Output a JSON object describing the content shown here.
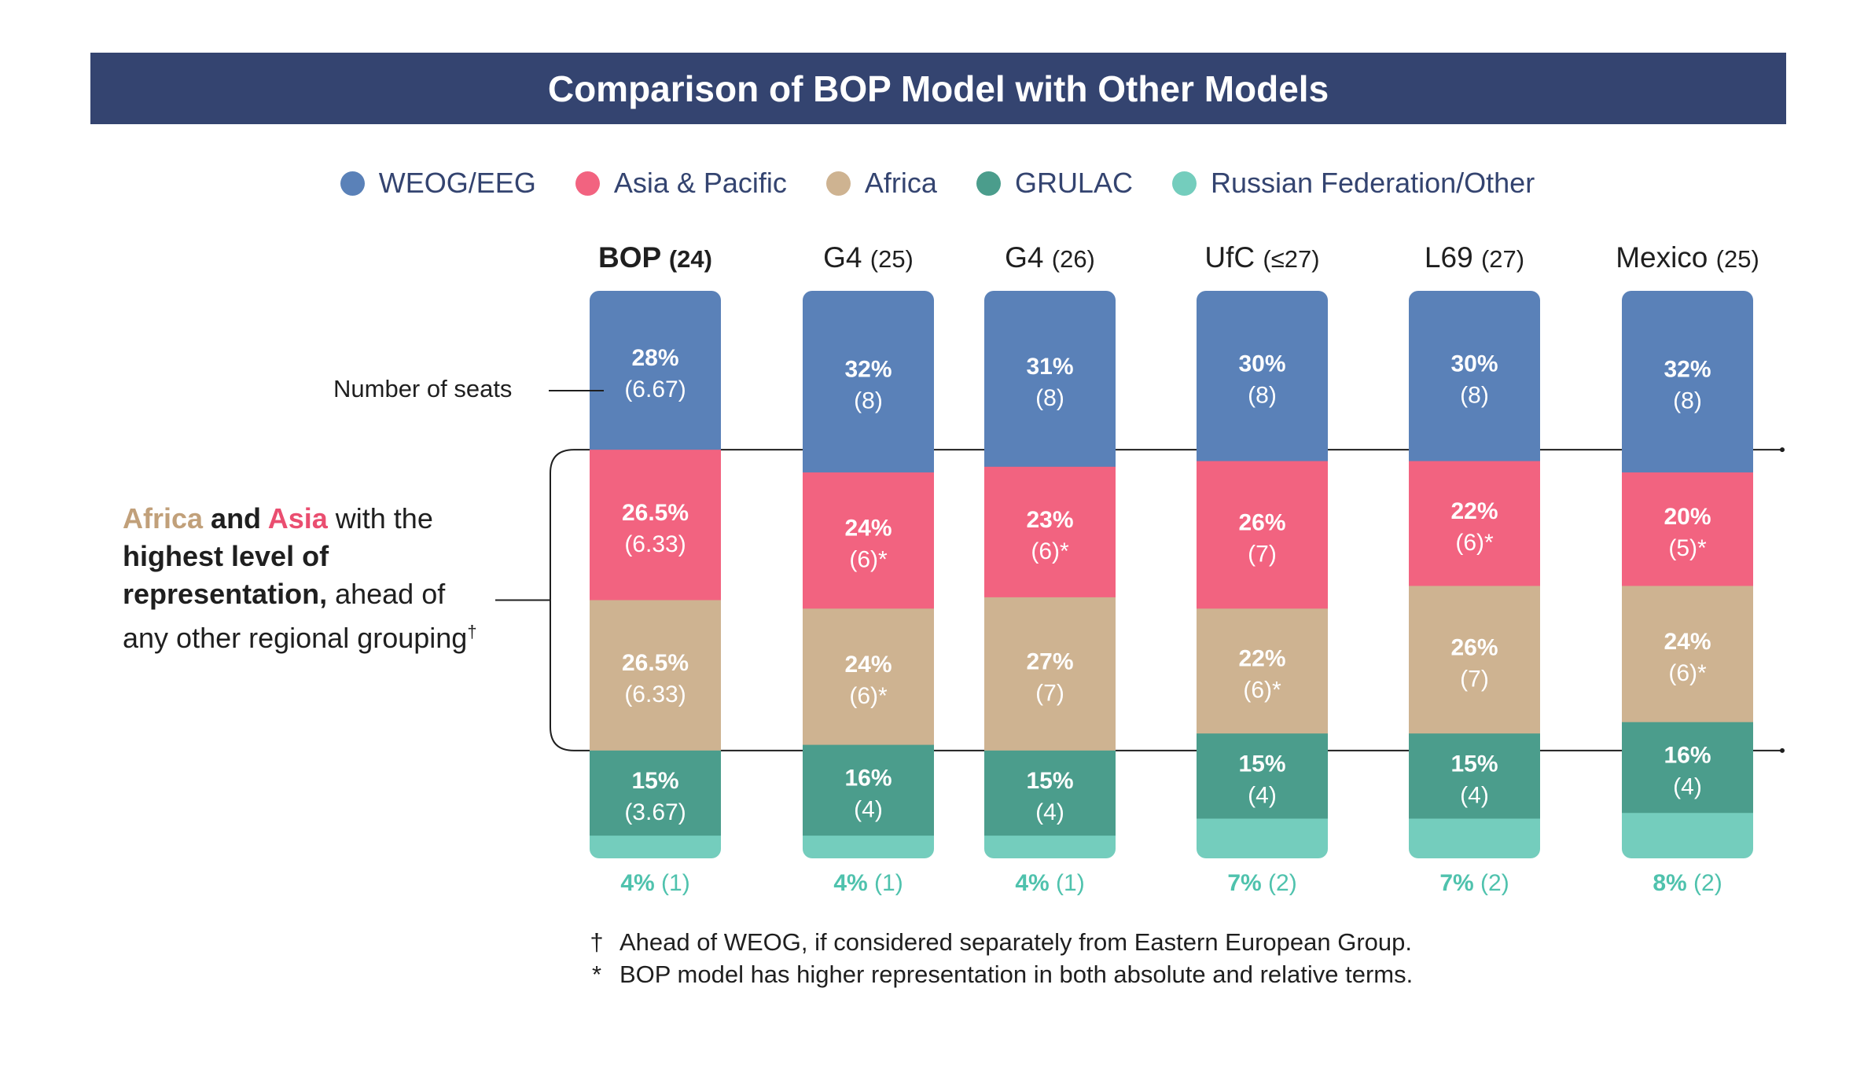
{
  "title": "Comparison of BOP Model with Other Models",
  "legend": [
    {
      "name": "WEOG/EEG",
      "color": "#5a81b8",
      "icon": "circle"
    },
    {
      "name": "Asia & Pacific",
      "color": "#f26380",
      "icon": "circle"
    },
    {
      "name": "Africa",
      "color": "#ceb391",
      "icon": "circle"
    },
    {
      "name": "GRULAC",
      "color": "#4b9d8c",
      "icon": "circle"
    },
    {
      "name": "Russian Federation/Other",
      "color": "#74cdbd",
      "icon": "circle"
    }
  ],
  "seats_label": "Number of seats",
  "side_note": {
    "africa": "Africa",
    "and": " and ",
    "asia": "Asia",
    "with": " with the ",
    "highest": "highest level of representation,",
    "rest": " ahead of any other regional grouping",
    "dagger": "†"
  },
  "footnotes": [
    {
      "mark": "†",
      "text": "Ahead of WEOG, if considered separately from Eastern European Group."
    },
    {
      "mark": "*",
      "text": "BOP model has higher representation in both absolute and relative terms."
    }
  ],
  "chart_data": {
    "type": "bar",
    "stacked": true,
    "series_names": [
      "WEOG/EEG",
      "Asia & Pacific",
      "Africa",
      "GRULAC",
      "Russian Federation/Other"
    ],
    "colors": [
      "#5a81b8",
      "#f26380",
      "#ceb391",
      "#4b9d8c",
      "#74cdbd"
    ],
    "models": [
      {
        "name": "BOP",
        "size": "(24)",
        "bold": true,
        "segments": [
          {
            "pct": 28,
            "pct_label": "28%",
            "seats_label": "(6.67)"
          },
          {
            "pct": 26.5,
            "pct_label": "26.5%",
            "seats_label": "(6.33)"
          },
          {
            "pct": 26.5,
            "pct_label": "26.5%",
            "seats_label": "(6.33)"
          },
          {
            "pct": 15,
            "pct_label": "15%",
            "seats_label": "(3.67)"
          },
          {
            "pct": 4,
            "pct_label": "4%",
            "seats_label": "(1)"
          }
        ]
      },
      {
        "name": "G4",
        "size": "(25)",
        "bold": false,
        "segments": [
          {
            "pct": 32,
            "pct_label": "32%",
            "seats_label": "(8)"
          },
          {
            "pct": 24,
            "pct_label": "24%",
            "seats_label": "(6)*"
          },
          {
            "pct": 24,
            "pct_label": "24%",
            "seats_label": "(6)*"
          },
          {
            "pct": 16,
            "pct_label": "16%",
            "seats_label": "(4)"
          },
          {
            "pct": 4,
            "pct_label": "4%",
            "seats_label": "(1)"
          }
        ]
      },
      {
        "name": "G4",
        "size": "(26)",
        "bold": false,
        "segments": [
          {
            "pct": 31,
            "pct_label": "31%",
            "seats_label": "(8)"
          },
          {
            "pct": 23,
            "pct_label": "23%",
            "seats_label": "(6)*"
          },
          {
            "pct": 27,
            "pct_label": "27%",
            "seats_label": "(7)"
          },
          {
            "pct": 15,
            "pct_label": "15%",
            "seats_label": "(4)"
          },
          {
            "pct": 4,
            "pct_label": "4%",
            "seats_label": "(1)"
          }
        ]
      },
      {
        "name": "UfC",
        "size": "(≤27)",
        "bold": false,
        "segments": [
          {
            "pct": 30,
            "pct_label": "30%",
            "seats_label": "(8)"
          },
          {
            "pct": 26,
            "pct_label": "26%",
            "seats_label": "(7)"
          },
          {
            "pct": 22,
            "pct_label": "22%",
            "seats_label": "(6)*"
          },
          {
            "pct": 15,
            "pct_label": "15%",
            "seats_label": "(4)"
          },
          {
            "pct": 7,
            "pct_label": "7%",
            "seats_label": "(2)"
          }
        ]
      },
      {
        "name": "L69",
        "size": "(27)",
        "bold": false,
        "segments": [
          {
            "pct": 30,
            "pct_label": "30%",
            "seats_label": "(8)"
          },
          {
            "pct": 22,
            "pct_label": "22%",
            "seats_label": "(6)*"
          },
          {
            "pct": 26,
            "pct_label": "26%",
            "seats_label": "(7)"
          },
          {
            "pct": 15,
            "pct_label": "15%",
            "seats_label": "(4)"
          },
          {
            "pct": 7,
            "pct_label": "7%",
            "seats_label": "(2)"
          }
        ]
      },
      {
        "name": "Mexico",
        "size": "(25)",
        "bold": false,
        "segments": [
          {
            "pct": 32,
            "pct_label": "32%",
            "seats_label": "(8)"
          },
          {
            "pct": 20,
            "pct_label": "20%",
            "seats_label": "(5)*"
          },
          {
            "pct": 24,
            "pct_label": "24%",
            "seats_label": "(6)*"
          },
          {
            "pct": 16,
            "pct_label": "16%",
            "seats_label": "(4)"
          },
          {
            "pct": 8,
            "pct_label": "8%",
            "seats_label": "(2)"
          }
        ]
      }
    ]
  }
}
